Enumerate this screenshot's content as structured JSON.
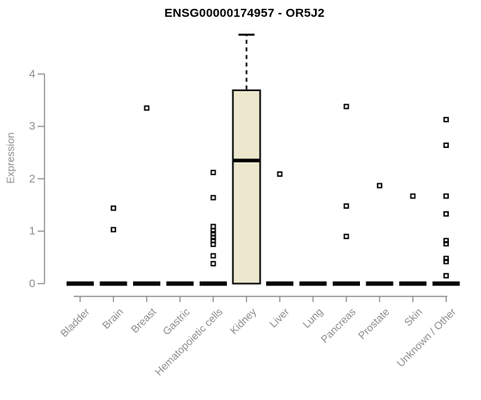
{
  "chart_data": {
    "type": "boxplot",
    "title": "ENSG00000174957 - OR5J2",
    "ylabel": "Expression",
    "xlabel": "",
    "ylim": [
      0,
      4
    ],
    "yticks": [
      0,
      1,
      2,
      3,
      4
    ],
    "grid": "off",
    "legend": "none",
    "point_style": "open-square",
    "categories": [
      "Bladder",
      "Brain",
      "Breast",
      "Gastric",
      "Hematopoietic cells",
      "Kidney",
      "Liver",
      "Lung",
      "Pancreas",
      "Prostate",
      "Skin",
      "Unknown / Other"
    ],
    "boxes": [
      {
        "category": "Bladder",
        "q1": 0,
        "median": 0,
        "q3": 0,
        "whisker_low": 0,
        "whisker_high": 0,
        "outliers": []
      },
      {
        "category": "Brain",
        "q1": 0,
        "median": 0,
        "q3": 0,
        "whisker_low": 0,
        "whisker_high": 0,
        "outliers": [
          1.44,
          1.03
        ]
      },
      {
        "category": "Breast",
        "q1": 0,
        "median": 0,
        "q3": 0,
        "whisker_low": 0,
        "whisker_high": 0,
        "outliers": [
          3.35
        ]
      },
      {
        "category": "Gastric",
        "q1": 0,
        "median": 0,
        "q3": 0,
        "whisker_low": 0,
        "whisker_high": 0,
        "outliers": []
      },
      {
        "category": "Hematopoietic cells",
        "q1": 0,
        "median": 0,
        "q3": 0,
        "whisker_low": 0,
        "whisker_high": 0,
        "outliers": [
          2.12,
          1.64,
          1.09,
          1.01,
          0.95,
          0.88,
          0.82,
          0.75,
          0.53,
          0.38
        ]
      },
      {
        "category": "Kidney",
        "q1": 0,
        "median": 2.35,
        "q3": 3.69,
        "whisker_low": 0,
        "whisker_high": 4.75,
        "outliers": []
      },
      {
        "category": "Liver",
        "q1": 0,
        "median": 0,
        "q3": 0,
        "whisker_low": 0,
        "whisker_high": 0,
        "outliers": [
          2.09
        ]
      },
      {
        "category": "Lung",
        "q1": 0,
        "median": 0,
        "q3": 0,
        "whisker_low": 0,
        "whisker_high": 0,
        "outliers": []
      },
      {
        "category": "Pancreas",
        "q1": 0,
        "median": 0,
        "q3": 0,
        "whisker_low": 0,
        "whisker_high": 0,
        "outliers": [
          3.38,
          1.48,
          0.9
        ]
      },
      {
        "category": "Prostate",
        "q1": 0,
        "median": 0,
        "q3": 0,
        "whisker_low": 0,
        "whisker_high": 0,
        "outliers": [
          1.87
        ]
      },
      {
        "category": "Skin",
        "q1": 0,
        "median": 0,
        "q3": 0,
        "whisker_low": 0,
        "whisker_high": 0,
        "outliers": [
          1.67
        ]
      },
      {
        "category": "Unknown / Other",
        "q1": 0,
        "median": 0,
        "q3": 0,
        "whisker_low": 0,
        "whisker_high": 0,
        "outliers": [
          3.13,
          2.64,
          1.67,
          1.33,
          0.82,
          0.76,
          0.48,
          0.42,
          0.15
        ]
      }
    ],
    "colors": {
      "box_fill": "#ede7cd",
      "box_border": "#000000",
      "median": "#000000",
      "whisker": "#000000",
      "outlier": "#000000",
      "axis": "#8f8f8f",
      "tick_text": "#8c8c8c",
      "title_text": "#000000"
    }
  }
}
